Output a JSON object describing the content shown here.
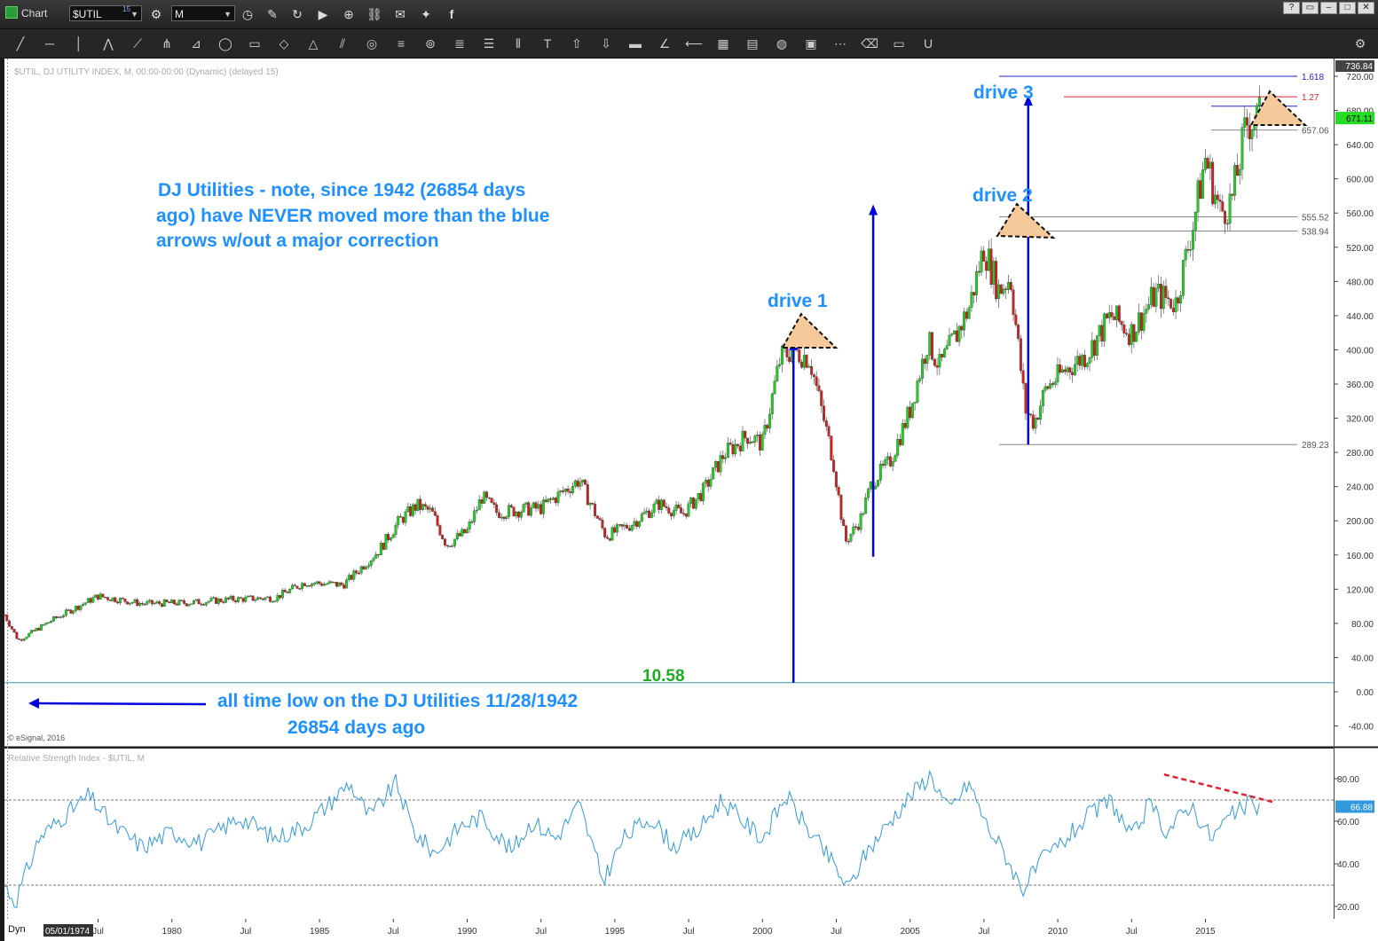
{
  "window": {
    "app_title": "Chart",
    "symbol": "$UTIL",
    "symbol_badge": "15",
    "interval": "M",
    "window_buttons": [
      "?",
      "▭",
      "–",
      "□",
      "✕"
    ]
  },
  "toolbar_icons": [
    "line-icon",
    "hline-icon",
    "vline-icon",
    "polyline-icon",
    "fan-icon",
    "pitchfork-icon",
    "gann-icon",
    "ellipse-icon",
    "rectangle-icon",
    "eraser-shape-icon",
    "triangle-icon",
    "parallel-icon",
    "cycles-icon",
    "channel-icon",
    "target-icon",
    "fib-icon",
    "levels-icon",
    "bars-icon",
    "text-icon",
    "arrow-up-icon",
    "arrow-down-icon",
    "fill-icon",
    "angle-icon",
    "back-icon",
    "grid-icon",
    "mob-icon",
    "speed-icon",
    "pti-icon",
    "zigzag-icon",
    "erase-icon",
    "snapshot-icon",
    "magnet-icon"
  ],
  "header": {
    "study_label": "$UTIL, DJ UTILITY INDEX, M, 00:00-00:00 (Dynamic) (delayed 15)",
    "copyright": "© eSignal, 2016",
    "rsi_label": "Relative Strength Index - $UTIL, M",
    "dyn_label": "Dyn",
    "start_date": "05/01/1974"
  },
  "annotations": {
    "note": "DJ Utilities - note, since 1942 (26854 days ago) have NEVER moved more than the blue arrows w/out a major correction",
    "note_lines": [
      "DJ Utilities - note, since 1942 (26854 days",
      "ago) have NEVER moved more than the blue",
      "arrows w/out a major correction"
    ],
    "drive1": "drive 1",
    "drive2": "drive 2",
    "drive3": "drive 3",
    "low_value": "10.58",
    "low_text_1": "all time low on the DJ Utilities 11/28/1942",
    "low_text_2": "26854 days ago"
  },
  "colors": {
    "up": "#22cc22",
    "down": "#cc2222",
    "annotation_blue": "#1e90ff",
    "arrow_blue": "#0000dd",
    "rsi_line": "#3399dd",
    "fib_red": "#dd2233",
    "current_price_bg": "#22dd22",
    "triangle_fill": "#f5c99a",
    "low_green": "#22aa22"
  },
  "chart_data": [
    {
      "type": "candlestick",
      "symbol": "$UTIL",
      "title": "$UTIL, DJ UTILITY INDEX, M",
      "ylim": [
        -40,
        736.84
      ],
      "y_ticks": [
        "720.00",
        "680.00",
        "640.00",
        "600.00",
        "560.00",
        "520.00",
        "480.00",
        "440.00",
        "400.00",
        "360.00",
        "320.00",
        "280.00",
        "240.00",
        "200.00",
        "160.00",
        "120.00",
        "80.00",
        "40.00",
        "0.00",
        "-40.00"
      ],
      "x_ticks": [
        "Jul",
        "1980",
        "Jul",
        "1985",
        "Jul",
        "1990",
        "Jul",
        "1995",
        "Jul",
        "2000",
        "Jul",
        "2005",
        "Jul",
        "2010",
        "Jul",
        "2015"
      ],
      "x_tick_years": [
        1977.5,
        1980,
        1982.5,
        1985,
        1987.5,
        1990,
        1992.5,
        1995,
        1997.5,
        2000,
        2002.5,
        2005,
        2007.5,
        2010,
        2012.5,
        2015
      ],
      "x_range_years": [
        1974.33,
        2017.9
      ],
      "anchor_points": [
        [
          1974.33,
          90
        ],
        [
          1974.8,
          60
        ],
        [
          1976,
          85
        ],
        [
          1977.5,
          112
        ],
        [
          1979,
          103
        ],
        [
          1980.5,
          104
        ],
        [
          1982,
          108
        ],
        [
          1983.5,
          110
        ],
        [
          1984.5,
          128
        ],
        [
          1985.8,
          125
        ],
        [
          1987,
          165
        ],
        [
          1987.7,
          200
        ],
        [
          1988.3,
          218
        ],
        [
          1988.8,
          210
        ],
        [
          1989.3,
          172
        ],
        [
          1990,
          188
        ],
        [
          1990.5,
          228
        ],
        [
          1991,
          210
        ],
        [
          1992.5,
          215
        ],
        [
          1993.8,
          248
        ],
        [
          1994.7,
          182
        ],
        [
          1995.5,
          195
        ],
        [
          1996.5,
          220
        ],
        [
          1997.3,
          208
        ],
        [
          1998,
          235
        ],
        [
          1998.7,
          278
        ],
        [
          1999.5,
          300
        ],
        [
          2000,
          290
        ],
        [
          2000.6,
          390
        ],
        [
          2001,
          400
        ],
        [
          2001.6,
          390
        ],
        [
          2002,
          330
        ],
        [
          2002.4,
          270
        ],
        [
          2002.8,
          175
        ],
        [
          2003.3,
          200
        ],
        [
          2003.7,
          245
        ],
        [
          2004.3,
          268
        ],
        [
          2005,
          330
        ],
        [
          2005.6,
          410
        ],
        [
          2006,
          380
        ],
        [
          2006.6,
          420
        ],
        [
          2007,
          450
        ],
        [
          2007.5,
          520
        ],
        [
          2008,
          470
        ],
        [
          2008.4,
          485
        ],
        [
          2008.9,
          330
        ],
        [
          2009.2,
          315
        ],
        [
          2009.6,
          355
        ],
        [
          2010.2,
          375
        ],
        [
          2011,
          395
        ],
        [
          2011.8,
          440
        ],
        [
          2012.5,
          420
        ],
        [
          2013.3,
          465
        ],
        [
          2014,
          455
        ],
        [
          2014.6,
          550
        ],
        [
          2015,
          625
        ],
        [
          2015.5,
          560
        ],
        [
          2015.9,
          575
        ],
        [
          2016.4,
          665
        ],
        [
          2016.8,
          672
        ]
      ],
      "levels": [
        {
          "label": "1.618",
          "value": 720,
          "color": "#2222cc"
        },
        {
          "label": "1.27",
          "value": 696,
          "color": "#dd2233"
        },
        {
          "label": "657.06",
          "value": 657.06,
          "color": "#888888"
        },
        {
          "label": "555.52",
          "value": 555.52,
          "color": "#888888"
        },
        {
          "label": "538.94",
          "value": 538.94,
          "color": "#888888"
        },
        {
          "label": "289.23",
          "value": 289.23,
          "color": "#888888"
        },
        {
          "label": "10.58",
          "value": 10.58,
          "color": "#3399aa"
        }
      ],
      "current_price": "671.11",
      "top_value": "736.84",
      "drive_arrows": [
        {
          "from_year": 2001.05,
          "from_value": 10.58,
          "to_value": 410
        },
        {
          "from_year": 2003.75,
          "from_value": 158,
          "to_value": 568
        },
        {
          "from_year": 2009.0,
          "from_value": 289.23,
          "to_value": 696
        }
      ]
    },
    {
      "type": "line",
      "title": "Relative Strength Index - $UTIL, M",
      "ylim": [
        15,
        95
      ],
      "y_ticks": [
        "80.00",
        "60.00",
        "40.00",
        "20.00"
      ],
      "bands": [
        70,
        30
      ],
      "current_value": "66.88",
      "anchor_points": [
        [
          1974.33,
          30
        ],
        [
          1974.7,
          22
        ],
        [
          1975.5,
          52
        ],
        [
          1976.3,
          62
        ],
        [
          1977.2,
          72
        ],
        [
          1978,
          58
        ],
        [
          1979,
          48
        ],
        [
          1980,
          55
        ],
        [
          1981,
          50
        ],
        [
          1982.3,
          62
        ],
        [
          1983.5,
          52
        ],
        [
          1984.5,
          58
        ],
        [
          1985.3,
          68
        ],
        [
          1986,
          78
        ],
        [
          1986.7,
          62
        ],
        [
          1987.6,
          78
        ],
        [
          1988.2,
          55
        ],
        [
          1988.9,
          45
        ],
        [
          1989.8,
          58
        ],
        [
          1990.5,
          62
        ],
        [
          1991.5,
          46
        ],
        [
          1992.2,
          60
        ],
        [
          1993,
          52
        ],
        [
          1993.8,
          68
        ],
        [
          1994.6,
          32
        ],
        [
          1995.3,
          52
        ],
        [
          1996.2,
          62
        ],
        [
          1997,
          48
        ],
        [
          1997.8,
          55
        ],
        [
          1998.6,
          70
        ],
        [
          1999.5,
          58
        ],
        [
          2000,
          52
        ],
        [
          2000.8,
          72
        ],
        [
          2001.6,
          55
        ],
        [
          2002.4,
          40
        ],
        [
          2002.9,
          28
        ],
        [
          2003.5,
          45
        ],
        [
          2004.2,
          58
        ],
        [
          2005,
          72
        ],
        [
          2005.7,
          82
        ],
        [
          2006.3,
          65
        ],
        [
          2007,
          78
        ],
        [
          2007.6,
          58
        ],
        [
          2008.2,
          45
        ],
        [
          2008.8,
          28
        ],
        [
          2009.5,
          42
        ],
        [
          2010.3,
          52
        ],
        [
          2011,
          62
        ],
        [
          2011.8,
          70
        ],
        [
          2012.5,
          52
        ],
        [
          2013.1,
          68
        ],
        [
          2013.7,
          55
        ],
        [
          2014.5,
          68
        ],
        [
          2015.2,
          52
        ],
        [
          2015.8,
          62
        ],
        [
          2016.5,
          68
        ],
        [
          2016.8,
          66.88
        ]
      ],
      "divergence_line": {
        "from": [
          2013.6,
          82
        ],
        "to": [
          2017.3,
          69
        ]
      }
    }
  ]
}
